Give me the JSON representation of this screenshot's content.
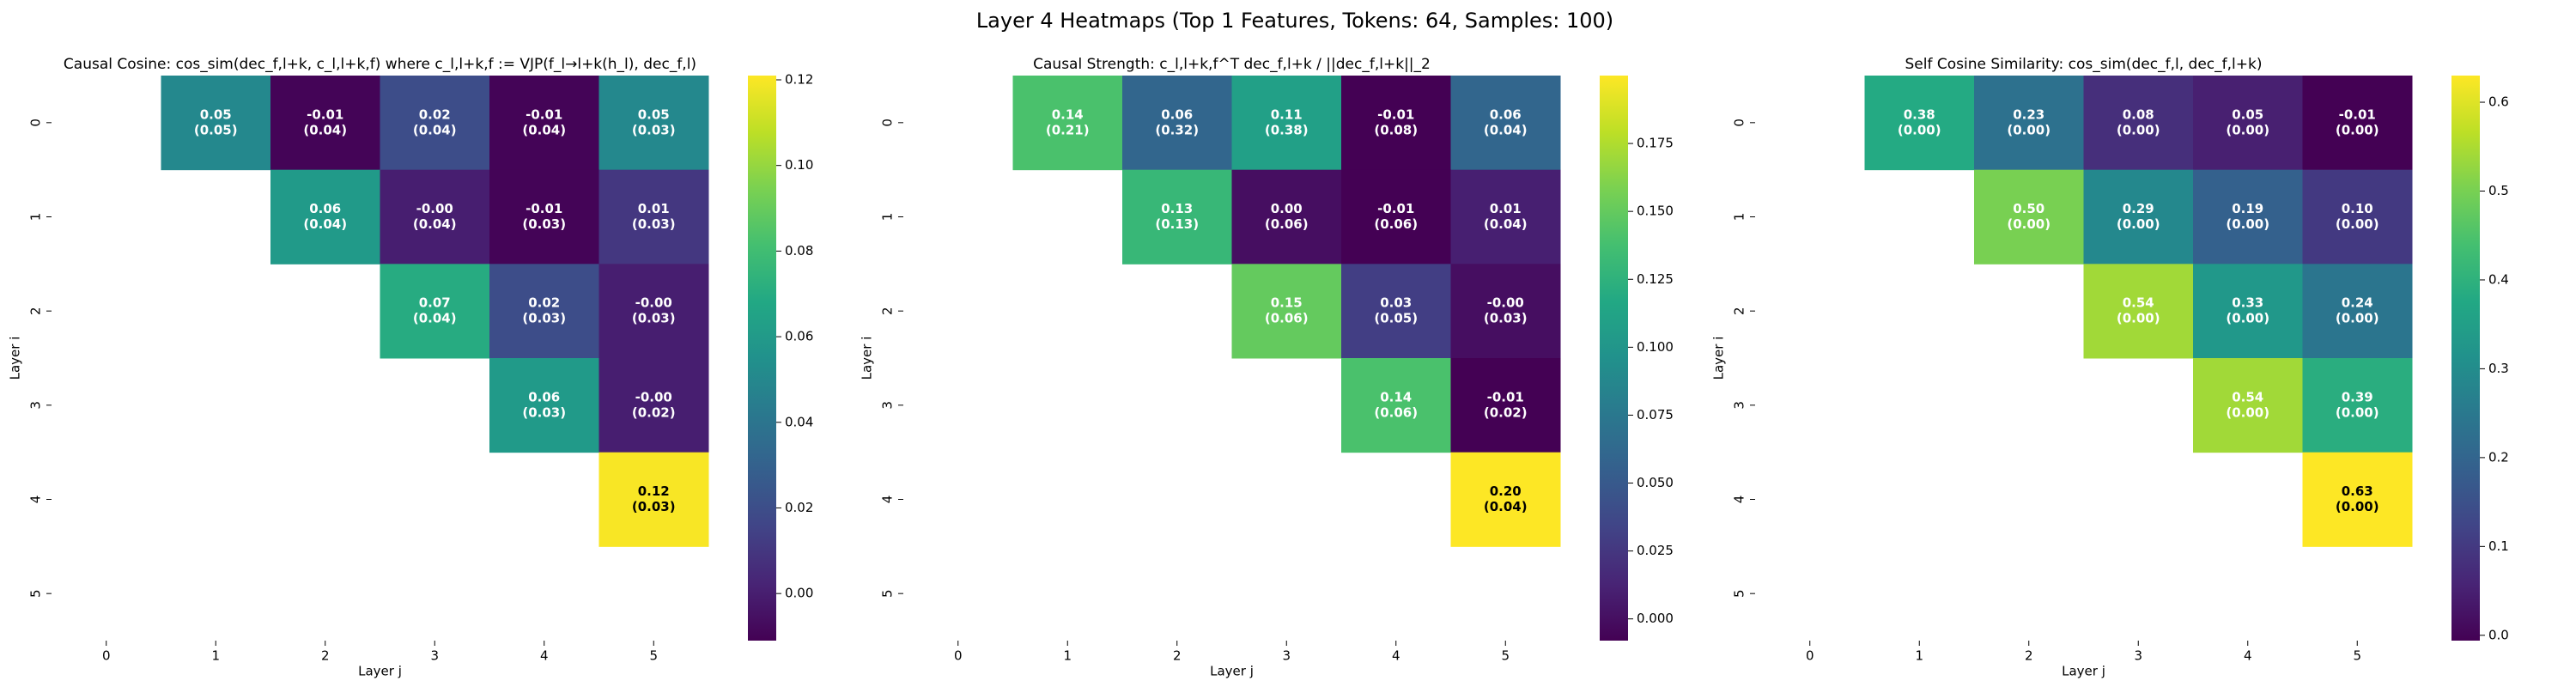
{
  "title": "Layer 4 Heatmaps (Top 1 Features, Tokens: 64, Samples: 100)",
  "chart_data": [
    {
      "type": "heatmap",
      "title": "Causal Cosine: cos_sim(dec_f,l+k, c_l,l+k,f) where c_l,l+k,f := VJP(f_l→l+k(h_l), dec_f,l)",
      "xlabel": "Layer j",
      "ylabel": "Layer i",
      "xcategories": [
        "0",
        "1",
        "2",
        "3",
        "4",
        "5"
      ],
      "ycategories": [
        "0",
        "1",
        "2",
        "3",
        "4",
        "5"
      ],
      "colormap": "viridis",
      "values": [
        [
          null,
          0.05,
          -0.01,
          0.02,
          -0.01,
          0.05
        ],
        [
          null,
          null,
          0.06,
          0,
          -0.01,
          0.01
        ],
        [
          null,
          null,
          null,
          0.07,
          0.02,
          0
        ],
        [
          null,
          null,
          null,
          null,
          0.06,
          0
        ],
        [
          null,
          null,
          null,
          null,
          null,
          0.12
        ],
        [
          null,
          null,
          null,
          null,
          null,
          null
        ]
      ],
      "value_labels": [
        [
          null,
          "0.05",
          "-0.01",
          "0.02",
          "-0.01",
          "0.05"
        ],
        [
          null,
          null,
          "0.06",
          "-0.00",
          "-0.01",
          "0.01"
        ],
        [
          null,
          null,
          null,
          "0.07",
          "0.02",
          "-0.00"
        ],
        [
          null,
          null,
          null,
          null,
          "0.06",
          "-0.00"
        ],
        [
          null,
          null,
          null,
          null,
          null,
          "0.12"
        ],
        [
          null,
          null,
          null,
          null,
          null,
          null
        ]
      ],
      "errors": [
        [
          null,
          0.05,
          0.04,
          0.04,
          0.04,
          0.03
        ],
        [
          null,
          null,
          0.04,
          0.04,
          0.03,
          0.03
        ],
        [
          null,
          null,
          null,
          0.04,
          0.03,
          0.03
        ],
        [
          null,
          null,
          null,
          null,
          0.03,
          0.02
        ],
        [
          null,
          null,
          null,
          null,
          null,
          0.03
        ],
        [
          null,
          null,
          null,
          null,
          null,
          null
        ]
      ],
      "error_labels": [
        [
          null,
          "(0.05)",
          "(0.04)",
          "(0.04)",
          "(0.04)",
          "(0.03)"
        ],
        [
          null,
          null,
          "(0.04)",
          "(0.04)",
          "(0.03)",
          "(0.03)"
        ],
        [
          null,
          null,
          null,
          "(0.04)",
          "(0.03)",
          "(0.03)"
        ],
        [
          null,
          null,
          null,
          null,
          "(0.03)",
          "(0.02)"
        ],
        [
          null,
          null,
          null,
          null,
          null,
          "(0.03)"
        ],
        [
          null,
          null,
          null,
          null,
          null,
          null
        ]
      ],
      "zlim": [
        -0.011,
        0.121
      ],
      "zticks": [
        {
          "value": 0,
          "label": "0.00"
        },
        {
          "value": 0.02,
          "label": "0.02"
        },
        {
          "value": 0.04,
          "label": "0.04"
        },
        {
          "value": 0.06,
          "label": "0.06"
        },
        {
          "value": 0.08,
          "label": "0.08"
        },
        {
          "value": 0.1,
          "label": "0.10"
        },
        {
          "value": 0.12,
          "label": "0.12"
        }
      ]
    },
    {
      "type": "heatmap",
      "title": "Causal Strength: c_l,l+k,f^T dec_f,l+k / ||dec_f,l+k||_2",
      "xlabel": "Layer j",
      "ylabel": "Layer i",
      "xcategories": [
        "0",
        "1",
        "2",
        "3",
        "4",
        "5"
      ],
      "ycategories": [
        "0",
        "1",
        "2",
        "3",
        "4",
        "5"
      ],
      "colormap": "viridis",
      "values": [
        [
          null,
          0.14,
          0.06,
          0.11,
          -0.01,
          0.06
        ],
        [
          null,
          null,
          0.13,
          0,
          -0.01,
          0.01
        ],
        [
          null,
          null,
          null,
          0.15,
          0.03,
          0
        ],
        [
          null,
          null,
          null,
          null,
          0.14,
          -0.01
        ],
        [
          null,
          null,
          null,
          null,
          null,
          0.2
        ],
        [
          null,
          null,
          null,
          null,
          null,
          null
        ]
      ],
      "value_labels": [
        [
          null,
          "0.14",
          "0.06",
          "0.11",
          "-0.01",
          "0.06"
        ],
        [
          null,
          null,
          "0.13",
          "0.00",
          "-0.01",
          "0.01"
        ],
        [
          null,
          null,
          null,
          "0.15",
          "0.03",
          "-0.00"
        ],
        [
          null,
          null,
          null,
          null,
          "0.14",
          "-0.01"
        ],
        [
          null,
          null,
          null,
          null,
          null,
          "0.20"
        ],
        [
          null,
          null,
          null,
          null,
          null,
          null
        ]
      ],
      "errors": [
        [
          null,
          0.21,
          0.32,
          0.38,
          0.08,
          0.04
        ],
        [
          null,
          null,
          0.13,
          0.06,
          0.06,
          0.04
        ],
        [
          null,
          null,
          null,
          0.06,
          0.05,
          0.03
        ],
        [
          null,
          null,
          null,
          null,
          0.06,
          0.02
        ],
        [
          null,
          null,
          null,
          null,
          null,
          0.04
        ],
        [
          null,
          null,
          null,
          null,
          null,
          null
        ]
      ],
      "error_labels": [
        [
          null,
          "(0.21)",
          "(0.32)",
          "(0.38)",
          "(0.08)",
          "(0.04)"
        ],
        [
          null,
          null,
          "(0.13)",
          "(0.06)",
          "(0.06)",
          "(0.04)"
        ],
        [
          null,
          null,
          null,
          "(0.06)",
          "(0.05)",
          "(0.03)"
        ],
        [
          null,
          null,
          null,
          null,
          "(0.06)",
          "(0.02)"
        ],
        [
          null,
          null,
          null,
          null,
          null,
          "(0.04)"
        ],
        [
          null,
          null,
          null,
          null,
          null,
          null
        ]
      ],
      "zlim": [
        -0.008,
        0.2
      ],
      "zticks": [
        {
          "value": 0,
          "label": "0.000"
        },
        {
          "value": 0.025,
          "label": "0.025"
        },
        {
          "value": 0.05,
          "label": "0.050"
        },
        {
          "value": 0.075,
          "label": "0.075"
        },
        {
          "value": 0.1,
          "label": "0.100"
        },
        {
          "value": 0.125,
          "label": "0.125"
        },
        {
          "value": 0.15,
          "label": "0.150"
        },
        {
          "value": 0.175,
          "label": "0.175"
        }
      ]
    },
    {
      "type": "heatmap",
      "title": "Self Cosine Similarity: cos_sim(dec_f,l, dec_f,l+k)",
      "xlabel": "Layer j",
      "ylabel": "Layer i",
      "xcategories": [
        "0",
        "1",
        "2",
        "3",
        "4",
        "5"
      ],
      "ycategories": [
        "0",
        "1",
        "2",
        "3",
        "4",
        "5"
      ],
      "colormap": "viridis",
      "values": [
        [
          null,
          0.38,
          0.23,
          0.08,
          0.05,
          -0.01
        ],
        [
          null,
          null,
          0.5,
          0.29,
          0.19,
          0.1
        ],
        [
          null,
          null,
          null,
          0.54,
          0.33,
          0.24
        ],
        [
          null,
          null,
          null,
          null,
          0.54,
          0.39
        ],
        [
          null,
          null,
          null,
          null,
          null,
          0.63
        ],
        [
          null,
          null,
          null,
          null,
          null,
          null
        ]
      ],
      "value_labels": [
        [
          null,
          "0.38",
          "0.23",
          "0.08",
          "0.05",
          "-0.01"
        ],
        [
          null,
          null,
          "0.50",
          "0.29",
          "0.19",
          "0.10"
        ],
        [
          null,
          null,
          null,
          "0.54",
          "0.33",
          "0.24"
        ],
        [
          null,
          null,
          null,
          null,
          "0.54",
          "0.39"
        ],
        [
          null,
          null,
          null,
          null,
          null,
          "0.63"
        ],
        [
          null,
          null,
          null,
          null,
          null,
          null
        ]
      ],
      "errors": [
        [
          null,
          0,
          0,
          0,
          0,
          0
        ],
        [
          null,
          null,
          0,
          0,
          0,
          0
        ],
        [
          null,
          null,
          null,
          0,
          0,
          0
        ],
        [
          null,
          null,
          null,
          null,
          0,
          0
        ],
        [
          null,
          null,
          null,
          null,
          null,
          0
        ],
        [
          null,
          null,
          null,
          null,
          null,
          null
        ]
      ],
      "error_labels": [
        [
          null,
          "(0.00)",
          "(0.00)",
          "(0.00)",
          "(0.00)",
          "(0.00)"
        ],
        [
          null,
          null,
          "(0.00)",
          "(0.00)",
          "(0.00)",
          "(0.00)"
        ],
        [
          null,
          null,
          null,
          "(0.00)",
          "(0.00)",
          "(0.00)"
        ],
        [
          null,
          null,
          null,
          null,
          "(0.00)",
          "(0.00)"
        ],
        [
          null,
          null,
          null,
          null,
          null,
          "(0.00)"
        ],
        [
          null,
          null,
          null,
          null,
          null,
          null
        ]
      ],
      "zlim": [
        -0.006,
        0.63
      ],
      "zticks": [
        {
          "value": 0,
          "label": "0.0"
        },
        0.1,
        0.2,
        0.3,
        0.4,
        0.5,
        0.6
      ]
    }
  ]
}
